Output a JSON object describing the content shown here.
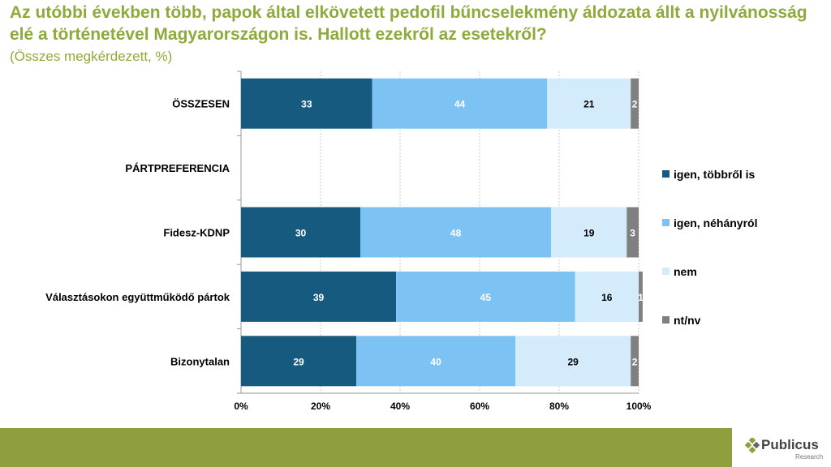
{
  "header": {
    "title": "Az utóbbi években több, papok által elkövetett pedofil bűncselekmény áldozata állt a nyilvánosság elé a történetével Magyarországon is. Hallott ezekről az esetekről?",
    "subtitle": "(Összes megkérdezett, %)"
  },
  "chart_data": {
    "type": "bar",
    "orientation": "horizontal",
    "stacked": true,
    "categories": [
      "ÖSSZESEN",
      "PÁRTPREFERENCIA",
      "Fidesz-KDNP",
      "Választásokon együttműködő pártok",
      "Bizonytalan"
    ],
    "series": [
      {
        "name": "igen, többről is",
        "color": "#175a80",
        "values": [
          33,
          null,
          30,
          39,
          29
        ],
        "label_color": "#ffffff"
      },
      {
        "name": "igen, néhányról",
        "color": "#7cc3f4",
        "values": [
          44,
          null,
          48,
          45,
          40
        ],
        "label_color": "#ffffff"
      },
      {
        "name": "nem",
        "color": "#d3ebfb",
        "values": [
          21,
          null,
          19,
          16,
          29
        ],
        "label_color": "#000000"
      },
      {
        "name": "nt/nv",
        "color": "#808080",
        "values": [
          2,
          null,
          3,
          1,
          2
        ],
        "label_color": "#ffffff"
      }
    ],
    "xlim": [
      0,
      100
    ],
    "xticks": [
      "0%",
      "20%",
      "40%",
      "60%",
      "80%",
      "100%"
    ],
    "grid": true,
    "legend_position": "right"
  },
  "brand": {
    "name": "Publicus",
    "sub": "Research",
    "color": "#8f9f3d"
  }
}
